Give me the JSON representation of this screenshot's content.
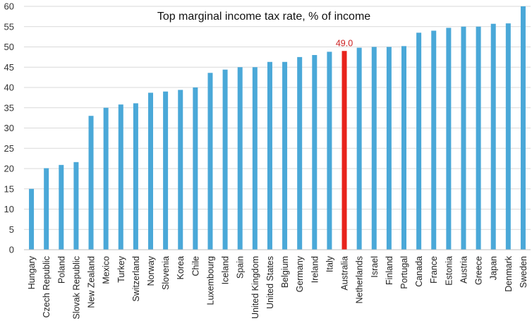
{
  "chart_data": {
    "type": "bar",
    "title": "Top marginal income tax rate, % of income",
    "xlabel": "",
    "ylabel": "",
    "ylim": [
      0,
      60
    ],
    "yticks": [
      0,
      5,
      10,
      15,
      20,
      25,
      30,
      35,
      40,
      45,
      50,
      55,
      60
    ],
    "grid": true,
    "colors": {
      "bar": "#4aa8d8",
      "highlight": "#e8231c",
      "annotation": "#cc1f1f"
    },
    "highlight_category": "Australia",
    "annotation": {
      "category": "Australia",
      "text": "49.0"
    },
    "categories": [
      "Hungary",
      "Czech Republic",
      "Poland",
      "Slovak Republic",
      "New Zealand",
      "Mexico",
      "Turkey",
      "Switzerland",
      "Norway",
      "Slovenia",
      "Korea",
      "Chile",
      "Luxembourg",
      "Iceland",
      "Spain",
      "United Kingdom",
      "United States",
      "Belgium",
      "Germany",
      "Ireland",
      "Italy",
      "Australia",
      "Netherlands",
      "Israel",
      "Finland",
      "Portugal",
      "Canada",
      "France",
      "Estonia",
      "Austria",
      "Greece",
      "Japan",
      "Denmark",
      "Sweden"
    ],
    "values": [
      15.0,
      20.1,
      20.9,
      21.6,
      33.0,
      35.0,
      35.8,
      36.1,
      38.7,
      39.0,
      39.4,
      40.0,
      43.6,
      44.4,
      45.0,
      45.0,
      46.3,
      46.3,
      47.5,
      48.0,
      48.8,
      49.0,
      49.8,
      50.0,
      50.0,
      50.2,
      53.5,
      54.0,
      54.7,
      55.0,
      55.0,
      55.7,
      55.8,
      60.0
    ]
  }
}
